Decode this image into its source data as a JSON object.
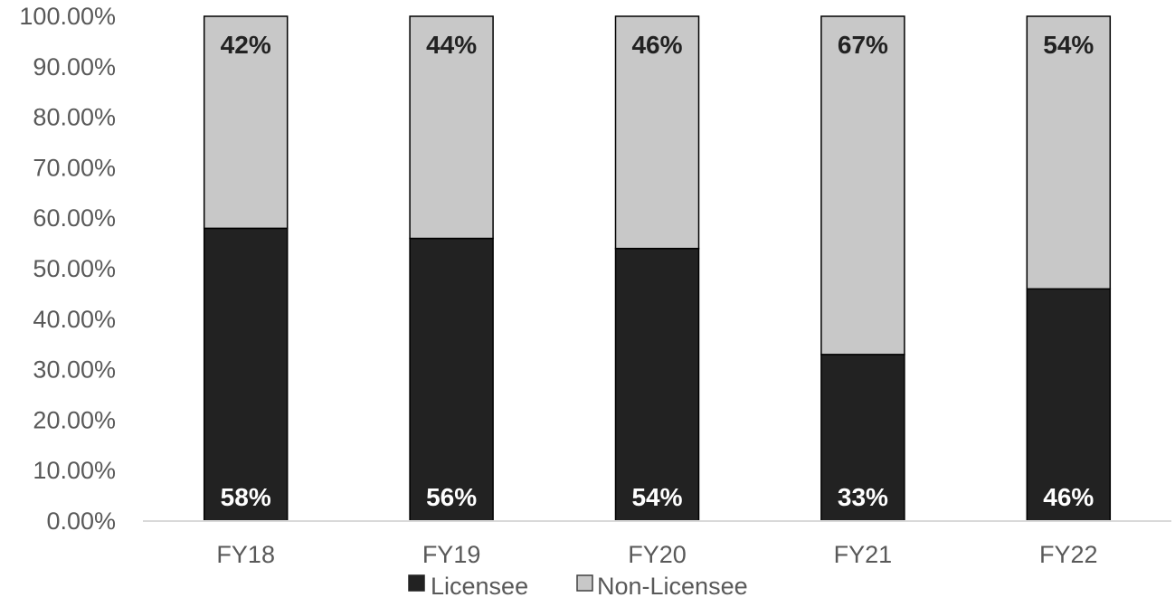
{
  "chart_data": {
    "type": "bar",
    "stacked": true,
    "categories": [
      "FY18",
      "FY19",
      "FY20",
      "FY21",
      "FY22"
    ],
    "series": [
      {
        "name": "Licensee",
        "values": [
          58,
          56,
          54,
          33,
          46
        ],
        "labels": [
          "58%",
          "56%",
          "54%",
          "33%",
          "46%"
        ],
        "color": "#222222",
        "label_color": "#ffffff"
      },
      {
        "name": "Non-Licensee",
        "values": [
          42,
          44,
          46,
          67,
          54
        ],
        "labels": [
          "42%",
          "44%",
          "46%",
          "67%",
          "54%"
        ],
        "color": "#c8c8c8",
        "label_color": "#222222"
      }
    ],
    "ylim": [
      0,
      100
    ],
    "yticks": [
      0,
      10,
      20,
      30,
      40,
      50,
      60,
      70,
      80,
      90,
      100
    ],
    "ytick_labels": [
      "0.00%",
      "10.00%",
      "20.00%",
      "30.00%",
      "40.00%",
      "50.00%",
      "60.00%",
      "70.00%",
      "80.00%",
      "90.00%",
      "100.00%"
    ],
    "grid": false,
    "legend": {
      "placement": "bottom"
    }
  }
}
